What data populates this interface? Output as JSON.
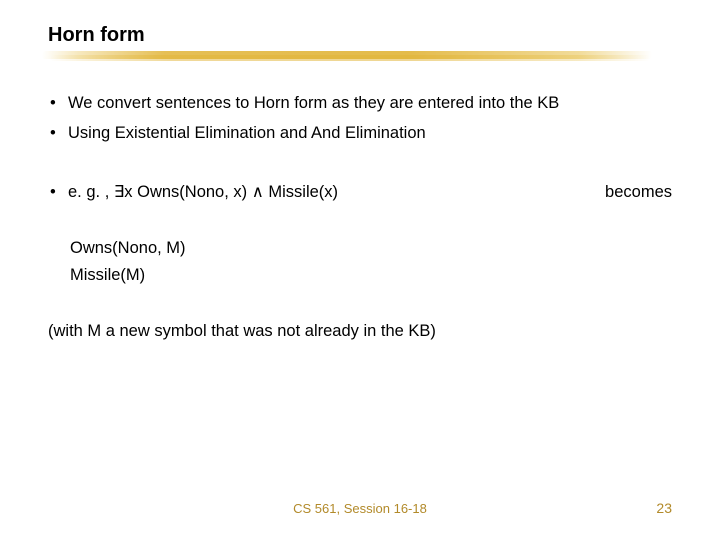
{
  "title": "Horn form",
  "bullets": {
    "b1": "We convert sentences to Horn form as they are entered into the KB",
    "b2": "Using Existential Elimination and And Elimination"
  },
  "example": {
    "prefix": "e. g. , ",
    "formula": "∃x Owns(Nono, x) ∧ Missile(x)",
    "becomes": "becomes"
  },
  "derived": {
    "line1": "Owns(Nono, M)",
    "line2": "Missile(M)"
  },
  "note": "(with M a new symbol that was not already in the KB)",
  "footer": "CS 561, Session 16-18",
  "page": "23",
  "colors": {
    "text": "#000000",
    "accent": "#b28a2a",
    "brush": "#e1b437",
    "background": "#ffffff"
  },
  "fonts": {
    "title_size_pt": 20,
    "body_size_pt": 16.5,
    "footer_size_pt": 13
  }
}
